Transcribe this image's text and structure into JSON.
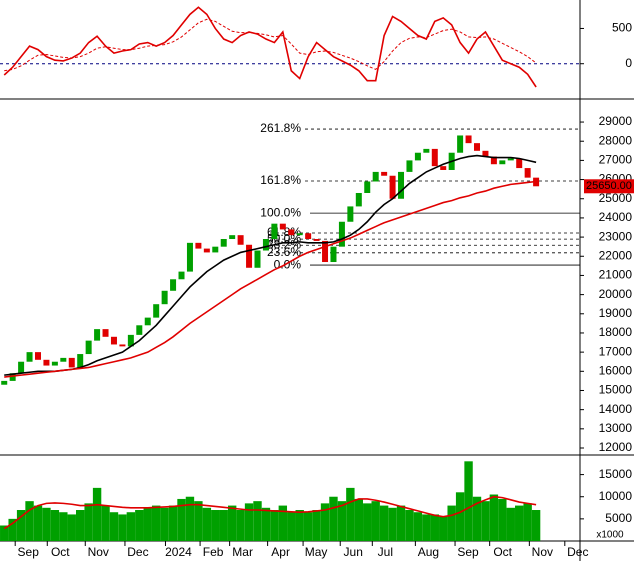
{
  "chart_data": [
    {
      "type": "line",
      "xlim": [
        -0.5,
        68.2
      ],
      "ylim": [
        -486,
        875
      ],
      "yticks": [
        0,
        500
      ],
      "zero_line": true,
      "series": [
        {
          "color": "#e00000",
          "values": [
            -160,
            -50,
            100,
            250,
            200,
            100,
            50,
            40,
            80,
            150,
            300,
            390,
            250,
            150,
            180,
            200,
            280,
            300,
            250,
            300,
            400,
            550,
            700,
            800,
            700,
            500,
            350,
            300,
            400,
            450,
            420,
            350,
            300,
            450,
            -100,
            -210,
            100,
            300,
            200,
            100,
            40,
            -20,
            -100,
            -240,
            -240,
            400,
            670,
            600,
            500,
            400,
            350,
            600,
            650,
            550,
            300,
            150,
            350,
            450,
            250,
            50,
            0,
            -50,
            -150,
            -330
          ]
        },
        {
          "color": "#e00000",
          "dashed": true,
          "values": [
            -100,
            -80,
            -30,
            50,
            120,
            130,
            110,
            90,
            80,
            100,
            150,
            220,
            240,
            220,
            200,
            200,
            220,
            250,
            260,
            270,
            310,
            380,
            480,
            580,
            630,
            600,
            530,
            460,
            440,
            440,
            430,
            410,
            380,
            400,
            280,
            150,
            130,
            170,
            180,
            160,
            120,
            80,
            30,
            -30,
            -80,
            30,
            180,
            300,
            360,
            380,
            370,
            420,
            470,
            490,
            450,
            380,
            370,
            380,
            350,
            290,
            230,
            170,
            100,
            10
          ]
        }
      ]
    },
    {
      "type": "candlestick",
      "xlim": [
        -0.5,
        68.2
      ],
      "ylim": [
        11635,
        30150
      ],
      "yticks": [
        12000,
        13000,
        14000,
        15000,
        16000,
        17000,
        18000,
        19000,
        20000,
        21000,
        22000,
        23000,
        24000,
        25000,
        26000,
        27000,
        28000,
        29000
      ],
      "up_color": "#00a000",
      "down_color": "#e00000",
      "open": [
        15300,
        15500,
        15900,
        16500,
        17000,
        16600,
        16300,
        16500,
        16700,
        16200,
        16900,
        17600,
        18200,
        17800,
        17400,
        17300,
        17900,
        18400,
        18800,
        19500,
        20200,
        20800,
        21200,
        22700,
        22400,
        22200,
        22500,
        22900,
        23100,
        22600,
        21400,
        22300,
        22900,
        23700,
        23400,
        23100,
        23200,
        22900,
        22800,
        21700,
        22500,
        23800,
        24600,
        25300,
        25900,
        26400,
        26200,
        25000,
        26400,
        27000,
        27400,
        27600,
        26700,
        26500,
        27400,
        28300,
        27900,
        27500,
        27200,
        26800,
        27000,
        27100,
        26600,
        26100
      ],
      "close": [
        15500,
        15900,
        16500,
        17000,
        16600,
        16300,
        16500,
        16700,
        16200,
        16900,
        17600,
        18200,
        17800,
        17400,
        17300,
        17900,
        18400,
        18800,
        19500,
        20200,
        20800,
        21200,
        22700,
        22400,
        22200,
        22500,
        22900,
        23100,
        22600,
        21400,
        22300,
        22900,
        23700,
        23400,
        23100,
        23200,
        22900,
        22800,
        21700,
        22500,
        23800,
        24600,
        25300,
        25900,
        26400,
        26200,
        25000,
        26400,
        27000,
        27400,
        27600,
        26700,
        26500,
        27400,
        28300,
        27900,
        27500,
        27200,
        26800,
        27000,
        27100,
        26600,
        26100,
        25650
      ],
      "series": [
        {
          "color": "#000000",
          "values": [
            15800,
            15850,
            15900,
            15950,
            16000,
            16000,
            16000,
            16050,
            16100,
            16200,
            16350,
            16550,
            16700,
            16850,
            17000,
            17300,
            17600,
            18000,
            18400,
            18900,
            19400,
            19900,
            20400,
            20800,
            21200,
            21500,
            21800,
            22000,
            22200,
            22300,
            22400,
            22500,
            22600,
            22700,
            22700,
            22750,
            22700,
            22700,
            22700,
            22750,
            22900,
            23100,
            23400,
            23800,
            24300,
            24700,
            25000,
            25400,
            25800,
            26100,
            26400,
            26600,
            26800,
            26950,
            27100,
            27200,
            27250,
            27200,
            27150,
            27150,
            27150,
            27100,
            27000,
            26900
          ]
        },
        {
          "color": "#e00000",
          "values": [
            15700,
            15750,
            15800,
            15850,
            15900,
            15950,
            16000,
            16050,
            16100,
            16150,
            16200,
            16300,
            16400,
            16500,
            16600,
            16700,
            16850,
            17000,
            17250,
            17500,
            17800,
            18150,
            18500,
            18800,
            19100,
            19400,
            19700,
            20000,
            20300,
            20550,
            20800,
            21050,
            21300,
            21500,
            21750,
            22000,
            22200,
            22350,
            22500,
            22650,
            22800,
            22950,
            23150,
            23350,
            23550,
            23750,
            23900,
            24050,
            24200,
            24350,
            24500,
            24650,
            24800,
            24900,
            25050,
            25150,
            25300,
            25400,
            25550,
            25650,
            25750,
            25800,
            25850,
            25900
          ]
        }
      ],
      "fibonacci": [
        {
          "label": "261.8%",
          "value": 28635
        },
        {
          "label": "161.8%",
          "value": 25925
        },
        {
          "label": "100.0%",
          "value": 24250
        },
        {
          "label": "61.8%",
          "value": 23215
        },
        {
          "label": "50.0%",
          "value": 22895
        },
        {
          "label": "38.2%",
          "value": 22575
        },
        {
          "label": "23.6%",
          "value": 22180
        },
        {
          "label": "0.0%",
          "value": 21540
        }
      ],
      "fib_color": "#2222cc",
      "last_price": {
        "value": 25650,
        "label": "25650.00"
      }
    },
    {
      "type": "bar",
      "xlim": [
        -0.5,
        68.2
      ],
      "ylim": [
        0,
        19200
      ],
      "yticks": [
        5000,
        10000,
        15000
      ],
      "unit_label": "x1000",
      "color": "#00a000",
      "values": [
        3500,
        5000,
        7000,
        9000,
        8000,
        7500,
        7000,
        6500,
        6000,
        7000,
        8500,
        12000,
        8000,
        6500,
        6000,
        6500,
        7000,
        7500,
        8000,
        7500,
        8000,
        9500,
        10000,
        9000,
        7500,
        7000,
        7000,
        8000,
        7000,
        8500,
        9000,
        7500,
        7000,
        8000,
        6500,
        7000,
        6500,
        7000,
        8500,
        10000,
        9000,
        12000,
        9500,
        8500,
        9000,
        8000,
        7500,
        8000,
        7000,
        6500,
        6000,
        6000,
        5500,
        8000,
        11000,
        18000,
        10000,
        9000,
        10500,
        9500,
        7500,
        8000,
        8500,
        7000
      ],
      "series": [
        {
          "color": "#e00000",
          "values": [
            2800,
            4000,
            5500,
            7000,
            8000,
            8500,
            8600,
            8500,
            8300,
            8000,
            8000,
            8200,
            8000,
            7800,
            7600,
            7500,
            7500,
            7500,
            7600,
            7700,
            7800,
            8000,
            8200,
            8200,
            8000,
            7800,
            7600,
            7400,
            7200,
            7000,
            7000,
            6900,
            6800,
            6700,
            6600,
            6500,
            6600,
            6800,
            7000,
            7500,
            8000,
            8800,
            9500,
            9500,
            9200,
            8800,
            8300,
            7800,
            7300,
            6800,
            6300,
            5800,
            5500,
            5800,
            6500,
            7500,
            8500,
            9300,
            10000,
            9800,
            9300,
            8800,
            8500,
            8200
          ]
        }
      ],
      "xticks": [
        {
          "value": 1.3,
          "label": "Sep"
        },
        {
          "value": 5.1,
          "label": "Oct"
        },
        {
          "value": 9.6,
          "label": "Nov"
        },
        {
          "value": 14.3,
          "label": "Dec"
        },
        {
          "value": 19.1,
          "label": "2024"
        },
        {
          "value": 23.2,
          "label": "Feb"
        },
        {
          "value": 26.7,
          "label": "Mar"
        },
        {
          "value": 31.2,
          "label": "Apr"
        },
        {
          "value": 35.4,
          "label": "May"
        },
        {
          "value": 39.8,
          "label": "Jun"
        },
        {
          "value": 43.6,
          "label": "Jul"
        },
        {
          "value": 48.7,
          "label": "Aug"
        },
        {
          "value": 53.4,
          "label": "Sep"
        },
        {
          "value": 57.5,
          "label": "Oct"
        },
        {
          "value": 62.2,
          "label": "Nov"
        },
        {
          "value": 66.4,
          "label": "Dec"
        }
      ]
    }
  ]
}
